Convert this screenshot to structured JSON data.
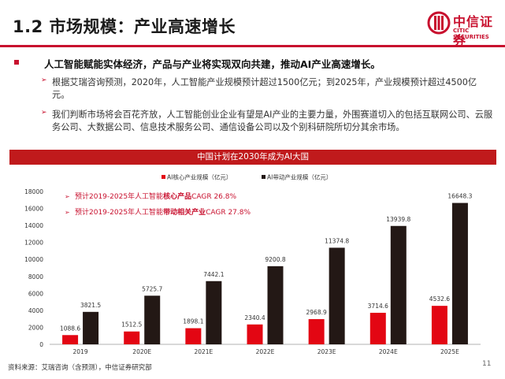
{
  "slide": {
    "title": "1.2 市场规模：产业高速增长",
    "logo_cn": "中信证券",
    "logo_en": "CITIC SECURITIES",
    "main_bullet": "人工智能赋能实体经济，产品与产业将实现双向共建，推动AI产业高速增长。",
    "sub_bullets": [
      "根据艾瑞咨询预测，2020年，人工智能产业规模预计超过1500亿元；到2025年，产业规模预计超过4500亿元。",
      "我们判断市场将会百花齐放，人工智能创业企业有望是AI产业的主要力量，外围赛道切入的包括互联网公司、云服务公司、大数据公司、信息技术服务公司、通信设备公司以及个别科研院所切分其余市场。"
    ],
    "chart_banner": "中国计划在2030年成为AI大国",
    "source": "资料来源：艾瑞咨询（含预测），中信证券研究部",
    "page_number": "11"
  },
  "colors": {
    "brand_red": "#c8102e",
    "core_series": "#e30613",
    "driven_series": "#231815"
  },
  "chart_data": {
    "type": "bar",
    "categories": [
      "2019",
      "2020E",
      "2021E",
      "2022E",
      "2023E",
      "2024E",
      "2025E"
    ],
    "series": [
      {
        "name": "AI核心产业规模（亿元）",
        "values": [
          1088.6,
          1512.5,
          1898.1,
          2340.4,
          2968.9,
          3714.6,
          4532.6
        ],
        "labels": [
          "1088.6",
          "1512.5",
          "1898.1",
          "2340.4",
          "2968.9",
          "3714.6",
          "4532.6"
        ]
      },
      {
        "name": "AI带动产业规模（亿元）",
        "values": [
          3821.5,
          5725.7,
          7442.1,
          9200.8,
          11374.8,
          13939.8,
          16648.3
        ],
        "labels": [
          "3821.5",
          "5725.7",
          "7442.1",
          "9200.8",
          "11374.8",
          "13939.8",
          "16648.3"
        ]
      }
    ],
    "ylim": [
      0,
      18000
    ],
    "yticks": [
      "0",
      "2000",
      "4000",
      "6000",
      "8000",
      "10000",
      "12000",
      "14000",
      "16000",
      "18000"
    ],
    "legend_position": "top-left",
    "annotations": [
      {
        "prefix": "预计2019-2025年人工智能",
        "highlight": "核心产品",
        "suffix": "CAGR 26.8%"
      },
      {
        "prefix": "预计2019-2025年人工智能",
        "highlight": "带动相关产业",
        "suffix": "CAGR 27.8%"
      }
    ]
  }
}
